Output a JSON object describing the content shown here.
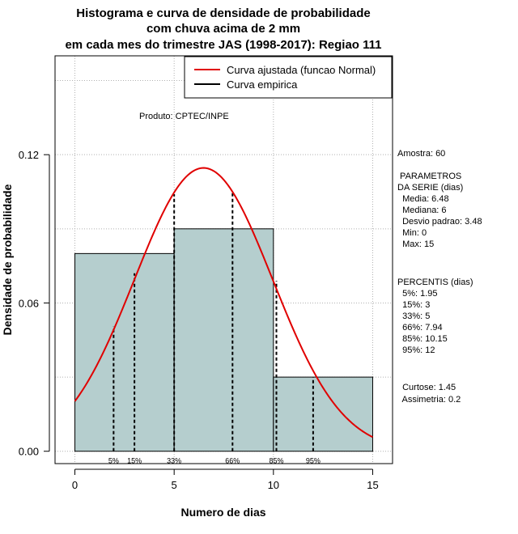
{
  "chart_data": {
    "type": "bar",
    "title_lines": [
      "Histograma e curva de densidade de probabilidade",
      "com chuva acima de 2 mm",
      "em cada mes do trimestre JAS (1998-2017): Regiao 111"
    ],
    "xlabel": "Numero de dias",
    "ylabel": "Densidade de probabilidade",
    "xlim": [
      -1,
      16
    ],
    "ylim": [
      -0.005,
      0.16
    ],
    "xticks": [
      0,
      5,
      10,
      15
    ],
    "xtick_labels": [
      "0",
      "5",
      "10",
      "15"
    ],
    "yticks": [
      0.0,
      0.06,
      0.12
    ],
    "ytick_labels": [
      "0.00",
      "0.06",
      "0.12"
    ],
    "grid": true,
    "histogram": {
      "bins": [
        [
          0,
          5
        ],
        [
          5,
          10
        ],
        [
          10,
          15
        ]
      ],
      "densities": [
        0.08,
        0.09,
        0.03
      ],
      "color": "#b5cece"
    },
    "normal_curve": {
      "mean": 6.48,
      "sd": 3.48,
      "x_range": [
        0,
        15
      ],
      "color": "#e00000"
    },
    "percentile_lines": [
      {
        "label": "5%",
        "x": 1.95,
        "y": 0.0505
      },
      {
        "label": "15%",
        "x": 3,
        "y": 0.072
      },
      {
        "label": "33%",
        "x": 5,
        "y": 0.104
      },
      {
        "label": "66%",
        "x": 7.94,
        "y": 0.105
      },
      {
        "label": "85%",
        "x": 10.15,
        "y": 0.069
      },
      {
        "label": "95%",
        "x": 12,
        "y": 0.03
      }
    ],
    "legend": {
      "position": "top-right",
      "entries": [
        {
          "label": "Curva ajustada (funcao Normal)",
          "color": "#e00000"
        },
        {
          "label": "Curva empirica",
          "color": "#000000"
        }
      ]
    },
    "annotation_product": "Produto: CPTEC/INPE",
    "stats_lines": [
      "Amostra: 60",
      " PARAMETROS",
      "DA SERIE (dias)",
      "  Media: 6.48",
      "  Mediana: 6",
      "  Desvio padrao: 3.48",
      "  Min: 0",
      "  Max: 15",
      "PERCENTIS (dias)",
      "  5%: 1.95",
      "  15%: 3",
      "  33%: 5",
      "  66%: 7.94",
      "  85%: 10.15",
      "  95%: 12",
      "  Curtose: 1.45",
      "  Assimetria: 0.2"
    ]
  }
}
